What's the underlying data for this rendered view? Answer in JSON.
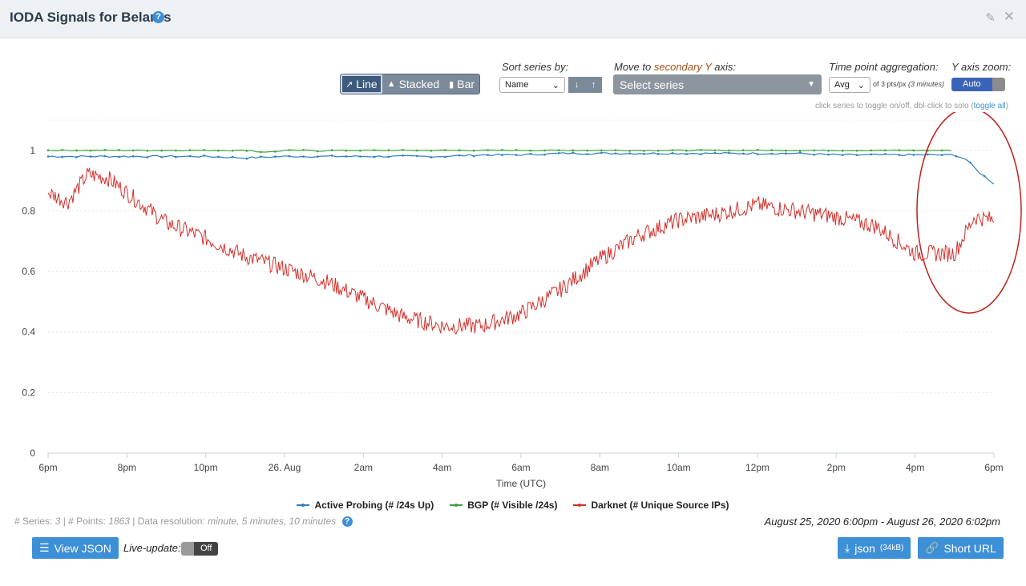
{
  "header": {
    "title": "IODA Signals for Belarus",
    "help": "?",
    "edit_icon": "edit-icon",
    "close_icon": "close-icon"
  },
  "controls": {
    "view_buttons": [
      {
        "label": "Line",
        "icon": "line-chart-icon",
        "active": true
      },
      {
        "label": "Stacked",
        "icon": "area-chart-icon",
        "active": false
      },
      {
        "label": "Bar",
        "icon": "bar-chart-icon",
        "active": false
      }
    ],
    "sort_label": "Sort series by:",
    "sort_value": "Name",
    "sort_down": "↓",
    "sort_up": "↑",
    "secondary_label_pre": "Move to ",
    "secondary_label_accent": "secondary Y",
    "secondary_label_post": " axis:",
    "series_select_placeholder": "Select series",
    "aggregation_label": "Time point aggregation:",
    "aggregation_value": "Avg",
    "aggregation_note_pre": "of 3 pts/px ",
    "aggregation_note_italic": "(3 minutes)",
    "yzoom_label": "Y axis zoom:",
    "yzoom_value": "Auto",
    "hint_pre": "click series to toggle on/off, dbl-click to solo (",
    "hint_link": "toggle all",
    "hint_post": ")"
  },
  "chart_data": {
    "type": "line",
    "xlabel": "Time (UTC)",
    "ylabel": "",
    "x_ticks": [
      "6pm",
      "8pm",
      "10pm",
      "26. Aug",
      "2am",
      "4am",
      "6am",
      "8am",
      "10am",
      "12pm",
      "2pm",
      "4pm",
      "6pm"
    ],
    "x_range_hours": [
      0,
      24
    ],
    "ylim": [
      0,
      1.1
    ],
    "y_ticks": [
      0,
      0.2,
      0.4,
      0.6,
      0.8,
      1
    ],
    "grid": true,
    "legend_position": "bottom-center",
    "series": [
      {
        "name": "Active Probing (# /24s Up)",
        "color": "#2f7ebd",
        "points": [
          [
            0,
            0.98
          ],
          [
            1,
            0.98
          ],
          [
            2,
            0.98
          ],
          [
            3,
            0.98
          ],
          [
            4,
            0.98
          ],
          [
            5,
            0.975
          ],
          [
            6,
            0.98
          ],
          [
            7,
            0.98
          ],
          [
            8,
            0.98
          ],
          [
            9,
            0.98
          ],
          [
            10,
            0.98
          ],
          [
            11,
            0.985
          ],
          [
            12,
            0.985
          ],
          [
            13,
            0.99
          ],
          [
            14,
            0.99
          ],
          [
            15,
            0.99
          ],
          [
            16,
            0.99
          ],
          [
            17,
            0.99
          ],
          [
            18,
            0.99
          ],
          [
            19,
            0.99
          ],
          [
            20,
            0.985
          ],
          [
            21,
            0.985
          ],
          [
            22,
            0.985
          ],
          [
            23,
            0.985
          ],
          [
            23.3,
            0.97
          ],
          [
            23.6,
            0.93
          ],
          [
            24,
            0.89
          ]
        ]
      },
      {
        "name": "BGP (# Visible /24s)",
        "color": "#3aa13a",
        "points": [
          [
            0,
            1.0
          ],
          [
            5.2,
            1.0
          ],
          [
            5.3,
            0.995
          ],
          [
            5.7,
            0.995
          ],
          [
            6,
            1.0
          ],
          [
            6.8,
            1.0
          ],
          [
            6.9,
            0.995
          ],
          [
            7.0,
            1.0
          ],
          [
            23.0,
            1.0
          ]
        ]
      },
      {
        "name": "Darknet (# Unique Source IPs)",
        "color": "#d4302b",
        "points": [
          [
            0,
            0.86
          ],
          [
            0.5,
            0.83
          ],
          [
            1,
            0.92
          ],
          [
            1.5,
            0.91
          ],
          [
            2,
            0.86
          ],
          [
            2.5,
            0.81
          ],
          [
            3,
            0.76
          ],
          [
            4,
            0.71
          ],
          [
            5,
            0.65
          ],
          [
            6,
            0.61
          ],
          [
            7,
            0.57
          ],
          [
            8,
            0.51
          ],
          [
            9,
            0.45
          ],
          [
            10,
            0.42
          ],
          [
            11,
            0.42
          ],
          [
            12,
            0.46
          ],
          [
            13,
            0.54
          ],
          [
            14,
            0.64
          ],
          [
            15,
            0.72
          ],
          [
            16,
            0.77
          ],
          [
            17,
            0.79
          ],
          [
            18,
            0.82
          ],
          [
            19,
            0.8
          ],
          [
            20,
            0.78
          ],
          [
            21,
            0.75
          ],
          [
            22,
            0.66
          ],
          [
            23,
            0.66
          ],
          [
            23.5,
            0.78
          ],
          [
            24,
            0.77
          ]
        ]
      }
    ]
  },
  "footer": {
    "series_label": "# Series: ",
    "series_count": "3",
    "points_label": " | # Points: ",
    "points_count": "1863",
    "resolution_label": " | Data resolution: ",
    "resolution_value": "minute, 5 minutes, 10 minutes",
    "date_range": "August 25, 2020 6:00pm - August 26, 2020 6:02pm",
    "view_json": "View JSON",
    "live_update_label": "Live-update:",
    "live_update_value": "Off",
    "json_button": "json",
    "json_size": "(34kB)",
    "short_url": "Short URL"
  }
}
